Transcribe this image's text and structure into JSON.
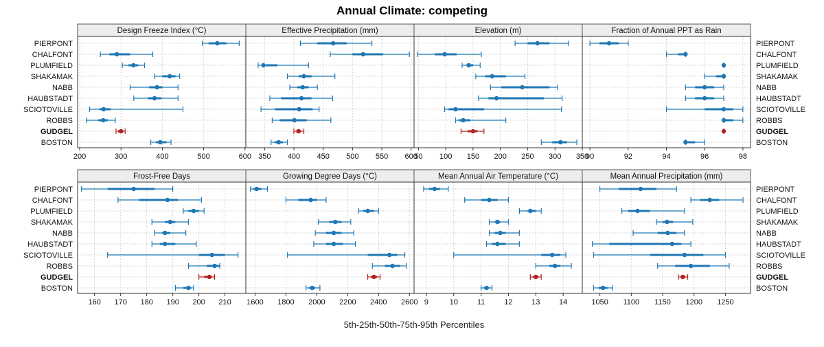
{
  "chart_data": {
    "type": "dotplot-percentile-bars",
    "title": "Annual Climate: competing",
    "xlabel": "5th-25th-50th-75th-95th Percentiles",
    "sites": [
      "PIERPONT",
      "CHALFONT",
      "PLUMFIELD",
      "SHAKAMAK",
      "NABB",
      "HAUBSTADT",
      "SCIOTOVILLE",
      "ROBBS",
      "GUDGEL",
      "BOSTON"
    ],
    "highlight_site": "GUDGEL",
    "colors": {
      "default": "#1f77b4",
      "highlight": "#b22222"
    },
    "panels": [
      {
        "title": "Design Freeze Index (°C)",
        "xlim": [
          195,
          602
        ],
        "ticks": [
          200,
          300,
          400,
          500,
          600
        ],
        "percentiles": [
          [
            497,
            512,
            533,
            555,
            586
          ],
          [
            250,
            272,
            290,
            322,
            377
          ],
          [
            303,
            318,
            330,
            342,
            357
          ],
          [
            381,
            400,
            418,
            432,
            442
          ],
          [
            322,
            368,
            387,
            400,
            438
          ],
          [
            331,
            365,
            381,
            398,
            438
          ],
          [
            224,
            248,
            258,
            275,
            450
          ],
          [
            216,
            245,
            257,
            268,
            286
          ],
          [
            288,
            293,
            300,
            306,
            310
          ],
          [
            372,
            385,
            395,
            410,
            421
          ]
        ]
      },
      {
        "title": "Effective Precipitation (mm)",
        "xlim": [
          318,
          605
        ],
        "ticks": [
          350,
          400,
          450,
          500,
          550,
          600
        ],
        "percentiles": [
          [
            411,
            440,
            467,
            490,
            533
          ],
          [
            462,
            500,
            518,
            552,
            597
          ],
          [
            339,
            352,
            348,
            372,
            425
          ],
          [
            389,
            408,
            417,
            430,
            470
          ],
          [
            393,
            406,
            415,
            425,
            440
          ],
          [
            359,
            378,
            413,
            430,
            466
          ],
          [
            344,
            368,
            409,
            432,
            443
          ],
          [
            363,
            376,
            401,
            422,
            463
          ],
          [
            400,
            404,
            408,
            412,
            417
          ],
          [
            361,
            367,
            374,
            381,
            389
          ]
        ]
      },
      {
        "title": "Elevation (m)",
        "xlim": [
          42,
          350
        ],
        "ticks": [
          50,
          100,
          150,
          200,
          250,
          300,
          350
        ],
        "percentiles": [
          [
            227,
            250,
            268,
            290,
            325
          ],
          [
            48,
            80,
            98,
            120,
            165
          ],
          [
            130,
            138,
            142,
            150,
            163
          ],
          [
            155,
            172,
            185,
            210,
            245
          ],
          [
            182,
            202,
            240,
            290,
            305
          ],
          [
            160,
            178,
            193,
            280,
            313
          ],
          [
            98,
            105,
            118,
            170,
            312
          ],
          [
            118,
            124,
            132,
            145,
            210
          ],
          [
            128,
            140,
            150,
            158,
            170
          ],
          [
            275,
            295,
            310,
            322,
            340
          ]
        ]
      },
      {
        "title": "Fraction of Annual PPT as Rain",
        "xlim": [
          89.6,
          98.4
        ],
        "ticks": [
          90,
          92,
          94,
          96,
          98
        ],
        "percentiles": [
          [
            90,
            90.5,
            91,
            91.5,
            92
          ],
          [
            94,
            94.6,
            95,
            95,
            95
          ],
          [
            97,
            97,
            97,
            97,
            97
          ],
          [
            96,
            96.6,
            97,
            97,
            97
          ],
          [
            95,
            95.5,
            96,
            96.5,
            97
          ],
          [
            95,
            95.5,
            96,
            96.5,
            97
          ],
          [
            94,
            96,
            97,
            97.5,
            98
          ],
          [
            97,
            97,
            97,
            97.5,
            98
          ],
          [
            97,
            97,
            97,
            97,
            97
          ],
          [
            95,
            95,
            95,
            95.5,
            96
          ]
        ]
      },
      {
        "title": "Frost-Free Days",
        "xlim": [
          153.5,
          218
        ],
        "ticks": [
          160,
          170,
          180,
          190,
          200,
          210
        ],
        "percentiles": [
          [
            155,
            165,
            175,
            183,
            190
          ],
          [
            169,
            177,
            188,
            192,
            201
          ],
          [
            194,
            196,
            198,
            200,
            202
          ],
          [
            182,
            187,
            189,
            191,
            196
          ],
          [
            183,
            186,
            187,
            189,
            195
          ],
          [
            182,
            185,
            187,
            191,
            199
          ],
          [
            165,
            200,
            205,
            210,
            215
          ],
          [
            196,
            203,
            206,
            208,
            208
          ],
          [
            200,
            202,
            204,
            205,
            206
          ],
          [
            191,
            194,
            196,
            197,
            198
          ]
        ]
      },
      {
        "title": "Growing Degree Days (°C)",
        "xlim": [
          1540,
          2630
        ],
        "ticks": [
          1600,
          1800,
          2000,
          2200,
          2400,
          2600
        ],
        "percentiles": [
          [
            1570,
            1590,
            1610,
            1640,
            1680
          ],
          [
            1800,
            1880,
            1960,
            2000,
            2060
          ],
          [
            2270,
            2300,
            2330,
            2370,
            2400
          ],
          [
            2010,
            2080,
            2120,
            2160,
            2220
          ],
          [
            1990,
            2060,
            2110,
            2160,
            2240
          ],
          [
            1980,
            2060,
            2110,
            2170,
            2250
          ],
          [
            1810,
            2330,
            2470,
            2520,
            2570
          ],
          [
            2360,
            2440,
            2490,
            2540,
            2580
          ],
          [
            2330,
            2350,
            2370,
            2390,
            2410
          ],
          [
            1930,
            1950,
            1970,
            1990,
            2020
          ]
        ]
      },
      {
        "title": "Mean Annual Air Temperature (°C)",
        "xlim": [
          8.55,
          14.7
        ],
        "ticks": [
          9,
          10,
          11,
          12,
          13,
          14
        ],
        "percentiles": [
          [
            8.9,
            9.1,
            9.3,
            9.5,
            9.8
          ],
          [
            10.4,
            11.0,
            11.3,
            11.6,
            12.0
          ],
          [
            12.4,
            12.7,
            12.8,
            13.0,
            13.2
          ],
          [
            11.3,
            11.5,
            11.6,
            11.7,
            12.0
          ],
          [
            11.3,
            11.5,
            11.7,
            11.9,
            12.4
          ],
          [
            11.2,
            11.4,
            11.6,
            11.9,
            12.4
          ],
          [
            10.0,
            13.2,
            13.6,
            13.9,
            14.1
          ],
          [
            13.0,
            13.5,
            13.7,
            13.9,
            14.3
          ],
          [
            12.8,
            12.9,
            13.0,
            13.1,
            13.2
          ],
          [
            11.0,
            11.1,
            11.2,
            11.3,
            11.4
          ]
        ]
      },
      {
        "title": "Mean Annual Precipitation (mm)",
        "xlim": [
          1022,
          1290
        ],
        "ticks": [
          1050,
          1100,
          1150,
          1200,
          1250
        ],
        "percentiles": [
          [
            1050,
            1080,
            1115,
            1140,
            1172
          ],
          [
            1195,
            1210,
            1225,
            1240,
            1278
          ],
          [
            1085,
            1095,
            1110,
            1130,
            1185
          ],
          [
            1140,
            1150,
            1157,
            1167,
            1198
          ],
          [
            1103,
            1142,
            1158,
            1172,
            1185
          ],
          [
            1038,
            1065,
            1165,
            1180,
            1195
          ],
          [
            1040,
            1130,
            1185,
            1215,
            1250
          ],
          [
            1142,
            1170,
            1195,
            1225,
            1256
          ],
          [
            1175,
            1179,
            1182,
            1186,
            1190
          ],
          [
            1040,
            1048,
            1055,
            1062,
            1070
          ]
        ]
      }
    ]
  }
}
